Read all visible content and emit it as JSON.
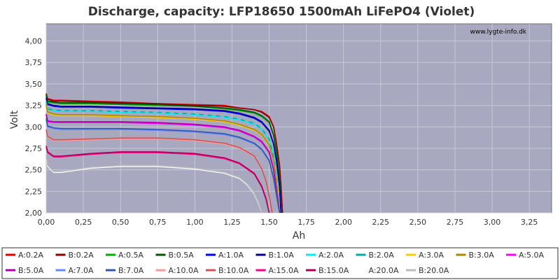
{
  "chart_data": {
    "type": "line",
    "title": "Discharge, capacity: LFP18650 1500mAh LiFePO4 (Violet)",
    "watermark": "www.lygte-info.dk",
    "xlabel": "Ah",
    "ylabel": "Volt",
    "xlim": [
      0,
      3.4
    ],
    "ylim": [
      2.0,
      4.2
    ],
    "x_ticks": [
      "0,00",
      "0,25",
      "0,50",
      "0,75",
      "1,00",
      "1,25",
      "1,50",
      "1,75",
      "2,00",
      "2,25",
      "2,50",
      "2,75",
      "3,00",
      "3,25"
    ],
    "y_ticks": [
      "2,00",
      "2,25",
      "2,50",
      "2,75",
      "3,00",
      "3,25",
      "3,50",
      "3,75",
      "4,00"
    ],
    "plot_background": "#a8a8c0",
    "grid": true,
    "legend_position": "bottom",
    "series": [
      {
        "name": "A:0.2A",
        "color": "#dd0000",
        "x": [
          0,
          0.01,
          0.05,
          0.1,
          0.3,
          0.5,
          0.75,
          1.0,
          1.2,
          1.3,
          1.4,
          1.45,
          1.5,
          1.53,
          1.55,
          1.57,
          1.58,
          1.59
        ],
        "y": [
          3.38,
          3.33,
          3.31,
          3.31,
          3.3,
          3.29,
          3.27,
          3.26,
          3.25,
          3.22,
          3.2,
          3.18,
          3.12,
          3.0,
          2.8,
          2.55,
          2.3,
          2.0
        ]
      },
      {
        "name": "B:0.2A",
        "color": "#880000",
        "x": [
          0,
          0.01,
          0.05,
          0.1,
          0.3,
          0.5,
          0.75,
          1.0,
          1.2,
          1.3,
          1.4,
          1.45,
          1.5,
          1.53,
          1.55,
          1.57,
          1.58,
          1.59
        ],
        "y": [
          3.39,
          3.32,
          3.3,
          3.3,
          3.29,
          3.28,
          3.27,
          3.25,
          3.24,
          3.22,
          3.2,
          3.17,
          3.11,
          3.0,
          2.8,
          2.55,
          2.3,
          2.0
        ]
      },
      {
        "name": "A:0.5A",
        "color": "#00aa00",
        "x": [
          0,
          0.01,
          0.05,
          0.1,
          0.3,
          0.5,
          0.75,
          1.0,
          1.2,
          1.3,
          1.4,
          1.45,
          1.5,
          1.53,
          1.55,
          1.57,
          1.58
        ],
        "y": [
          3.36,
          3.29,
          3.28,
          3.27,
          3.27,
          3.26,
          3.25,
          3.24,
          3.21,
          3.19,
          3.16,
          3.12,
          3.05,
          2.9,
          2.7,
          2.4,
          2.0
        ]
      },
      {
        "name": "B:0.5A",
        "color": "#005500",
        "x": [
          0,
          0.01,
          0.05,
          0.1,
          0.3,
          0.5,
          0.75,
          1.0,
          1.2,
          1.3,
          1.4,
          1.45,
          1.5,
          1.53,
          1.55,
          1.57,
          1.58
        ],
        "y": [
          3.37,
          3.3,
          3.29,
          3.28,
          3.28,
          3.27,
          3.26,
          3.24,
          3.22,
          3.2,
          3.17,
          3.13,
          3.06,
          2.9,
          2.7,
          2.4,
          2.0
        ]
      },
      {
        "name": "A:1.0A",
        "color": "#0000ff",
        "x": [
          0,
          0.01,
          0.05,
          0.1,
          0.3,
          0.5,
          0.75,
          1.0,
          1.2,
          1.3,
          1.4,
          1.45,
          1.5,
          1.53,
          1.55,
          1.57,
          1.58
        ],
        "y": [
          3.33,
          3.26,
          3.24,
          3.23,
          3.23,
          3.22,
          3.21,
          3.2,
          3.18,
          3.15,
          3.1,
          3.05,
          2.95,
          2.8,
          2.6,
          2.3,
          2.0
        ]
      },
      {
        "name": "B:1.0A",
        "color": "#000088",
        "x": [
          0,
          0.01,
          0.05,
          0.1,
          0.3,
          0.5,
          0.75,
          1.0,
          1.2,
          1.3,
          1.4,
          1.45,
          1.5,
          1.53,
          1.55,
          1.57,
          1.58
        ],
        "y": [
          3.34,
          3.27,
          3.25,
          3.24,
          3.24,
          3.23,
          3.22,
          3.21,
          3.19,
          3.16,
          3.11,
          3.06,
          2.96,
          2.8,
          2.6,
          2.3,
          2.0
        ]
      },
      {
        "name": "A:2.0A",
        "color": "#00eeee",
        "x": [
          0,
          0.01,
          0.05,
          0.1,
          0.3,
          0.5,
          0.75,
          1.0,
          1.2,
          1.3,
          1.4,
          1.45,
          1.5,
          1.53,
          1.55,
          1.57
        ],
        "y": [
          3.29,
          3.2,
          3.19,
          3.18,
          3.18,
          3.17,
          3.16,
          3.14,
          3.11,
          3.08,
          3.03,
          2.97,
          2.85,
          2.65,
          2.4,
          2.0
        ]
      },
      {
        "name": "B:2.0A",
        "color": "#00aaaa",
        "x": [
          0,
          0.01,
          0.05,
          0.1,
          0.3,
          0.5,
          0.75,
          1.0,
          1.2,
          1.3,
          1.4,
          1.45,
          1.5,
          1.53,
          1.55,
          1.57
        ],
        "y": [
          3.3,
          3.21,
          3.2,
          3.19,
          3.19,
          3.18,
          3.17,
          3.15,
          3.12,
          3.09,
          3.04,
          2.98,
          2.86,
          2.66,
          2.4,
          2.0
        ]
      },
      {
        "name": "A:3.0A",
        "color": "#ffcc00",
        "x": [
          0,
          0.01,
          0.05,
          0.1,
          0.3,
          0.5,
          0.75,
          1.0,
          1.2,
          1.3,
          1.4,
          1.45,
          1.5,
          1.53,
          1.55,
          1.57
        ],
        "y": [
          3.25,
          3.16,
          3.14,
          3.13,
          3.13,
          3.12,
          3.11,
          3.09,
          3.06,
          3.02,
          2.96,
          2.9,
          2.78,
          2.6,
          2.35,
          2.0
        ]
      },
      {
        "name": "B:3.0A",
        "color": "#aa8800",
        "x": [
          0,
          0.01,
          0.05,
          0.1,
          0.3,
          0.5,
          0.75,
          1.0,
          1.2,
          1.3,
          1.4,
          1.45,
          1.5,
          1.53,
          1.55,
          1.57
        ],
        "y": [
          3.26,
          3.17,
          3.15,
          3.14,
          3.14,
          3.13,
          3.12,
          3.1,
          3.07,
          3.03,
          2.97,
          2.91,
          2.79,
          2.6,
          2.35,
          2.0
        ]
      },
      {
        "name": "A:5.0A",
        "color": "#ff00ff",
        "x": [
          0,
          0.01,
          0.05,
          0.1,
          0.3,
          0.5,
          0.75,
          1.0,
          1.2,
          1.3,
          1.4,
          1.45,
          1.5,
          1.53,
          1.55,
          1.57
        ],
        "y": [
          3.14,
          3.06,
          3.05,
          3.05,
          3.05,
          3.05,
          3.04,
          3.02,
          2.99,
          2.95,
          2.88,
          2.82,
          2.7,
          2.5,
          2.25,
          2.0
        ]
      },
      {
        "name": "B:5.0A",
        "color": "#aa00aa",
        "x": [
          0,
          0.01,
          0.05,
          0.1,
          0.3,
          0.5,
          0.75,
          1.0,
          1.2,
          1.3,
          1.4,
          1.45,
          1.5,
          1.53,
          1.55,
          1.57
        ],
        "y": [
          3.15,
          3.07,
          3.06,
          3.06,
          3.06,
          3.06,
          3.05,
          3.03,
          3.0,
          2.96,
          2.89,
          2.83,
          2.71,
          2.5,
          2.25,
          2.0
        ]
      },
      {
        "name": "A:7.0A",
        "color": "#6688ff",
        "x": [
          0,
          0.01,
          0.05,
          0.1,
          0.3,
          0.5,
          0.75,
          1.0,
          1.2,
          1.3,
          1.4,
          1.45,
          1.5,
          1.53,
          1.55,
          1.57
        ],
        "y": [
          3.08,
          3.0,
          2.98,
          2.97,
          2.97,
          2.97,
          2.96,
          2.94,
          2.91,
          2.87,
          2.8,
          2.73,
          2.6,
          2.4,
          2.2,
          2.0
        ]
      },
      {
        "name": "B:7.0A",
        "color": "#3355aa",
        "x": [
          0,
          0.01,
          0.05,
          0.1,
          0.3,
          0.5,
          0.75,
          1.0,
          1.2,
          1.3,
          1.4,
          1.45,
          1.5,
          1.53,
          1.55,
          1.57
        ],
        "y": [
          3.1,
          3.01,
          2.99,
          2.98,
          2.98,
          2.98,
          2.97,
          2.95,
          2.92,
          2.88,
          2.81,
          2.74,
          2.61,
          2.4,
          2.2,
          2.0
        ]
      },
      {
        "name": "A:10.0A",
        "color": "#ff9999",
        "x": [
          0,
          0.01,
          0.05,
          0.1,
          0.3,
          0.5,
          0.75,
          1.0,
          1.2,
          1.3,
          1.4,
          1.45,
          1.48,
          1.5,
          1.52
        ],
        "y": [
          2.95,
          2.88,
          2.84,
          2.84,
          2.85,
          2.86,
          2.86,
          2.84,
          2.8,
          2.75,
          2.65,
          2.5,
          2.35,
          2.2,
          2.0
        ]
      },
      {
        "name": "B:10.0A",
        "color": "#cc5555",
        "x": [
          0,
          0.01,
          0.05,
          0.1,
          0.3,
          0.5,
          0.75,
          1.0,
          1.2,
          1.3,
          1.4,
          1.45,
          1.48,
          1.5,
          1.52
        ],
        "y": [
          2.97,
          2.89,
          2.85,
          2.85,
          2.86,
          2.87,
          2.87,
          2.85,
          2.81,
          2.76,
          2.66,
          2.51,
          2.36,
          2.2,
          2.0
        ]
      },
      {
        "name": "A:15.0A",
        "color": "#ff0088",
        "x": [
          0,
          0.01,
          0.05,
          0.1,
          0.3,
          0.5,
          0.75,
          1.0,
          1.2,
          1.3,
          1.4,
          1.45,
          1.48,
          1.5
        ],
        "y": [
          2.76,
          2.7,
          2.65,
          2.65,
          2.68,
          2.7,
          2.7,
          2.68,
          2.63,
          2.57,
          2.45,
          2.3,
          2.15,
          2.0
        ]
      },
      {
        "name": "B:15.0A",
        "color": "#aa0055",
        "x": [
          0,
          0.01,
          0.05,
          0.1,
          0.3,
          0.5,
          0.75,
          1.0,
          1.2,
          1.3,
          1.4,
          1.45,
          1.48,
          1.5
        ],
        "y": [
          2.78,
          2.71,
          2.66,
          2.66,
          2.69,
          2.71,
          2.71,
          2.69,
          2.64,
          2.58,
          2.46,
          2.31,
          2.16,
          2.0
        ]
      },
      {
        "name": "A:20.0A",
        "color": "#ffffff",
        "x": [
          0,
          0.01,
          0.05,
          0.1,
          0.3,
          0.5,
          0.75,
          1.0,
          1.2,
          1.3,
          1.35,
          1.4,
          1.43,
          1.45
        ],
        "y": [
          2.64,
          2.54,
          2.47,
          2.47,
          2.52,
          2.54,
          2.54,
          2.51,
          2.46,
          2.4,
          2.33,
          2.22,
          2.1,
          2.0
        ]
      },
      {
        "name": "B:20.0A",
        "color": "#bbbbbb",
        "x": [
          0,
          0.01,
          0.05,
          0.1,
          0.3,
          0.5,
          0.75,
          1.0,
          1.2,
          1.3,
          1.35,
          1.4,
          1.43,
          1.45
        ],
        "y": [
          2.65,
          2.55,
          2.48,
          2.48,
          2.53,
          2.55,
          2.55,
          2.52,
          2.47,
          2.41,
          2.34,
          2.23,
          2.11,
          2.0
        ]
      }
    ]
  }
}
